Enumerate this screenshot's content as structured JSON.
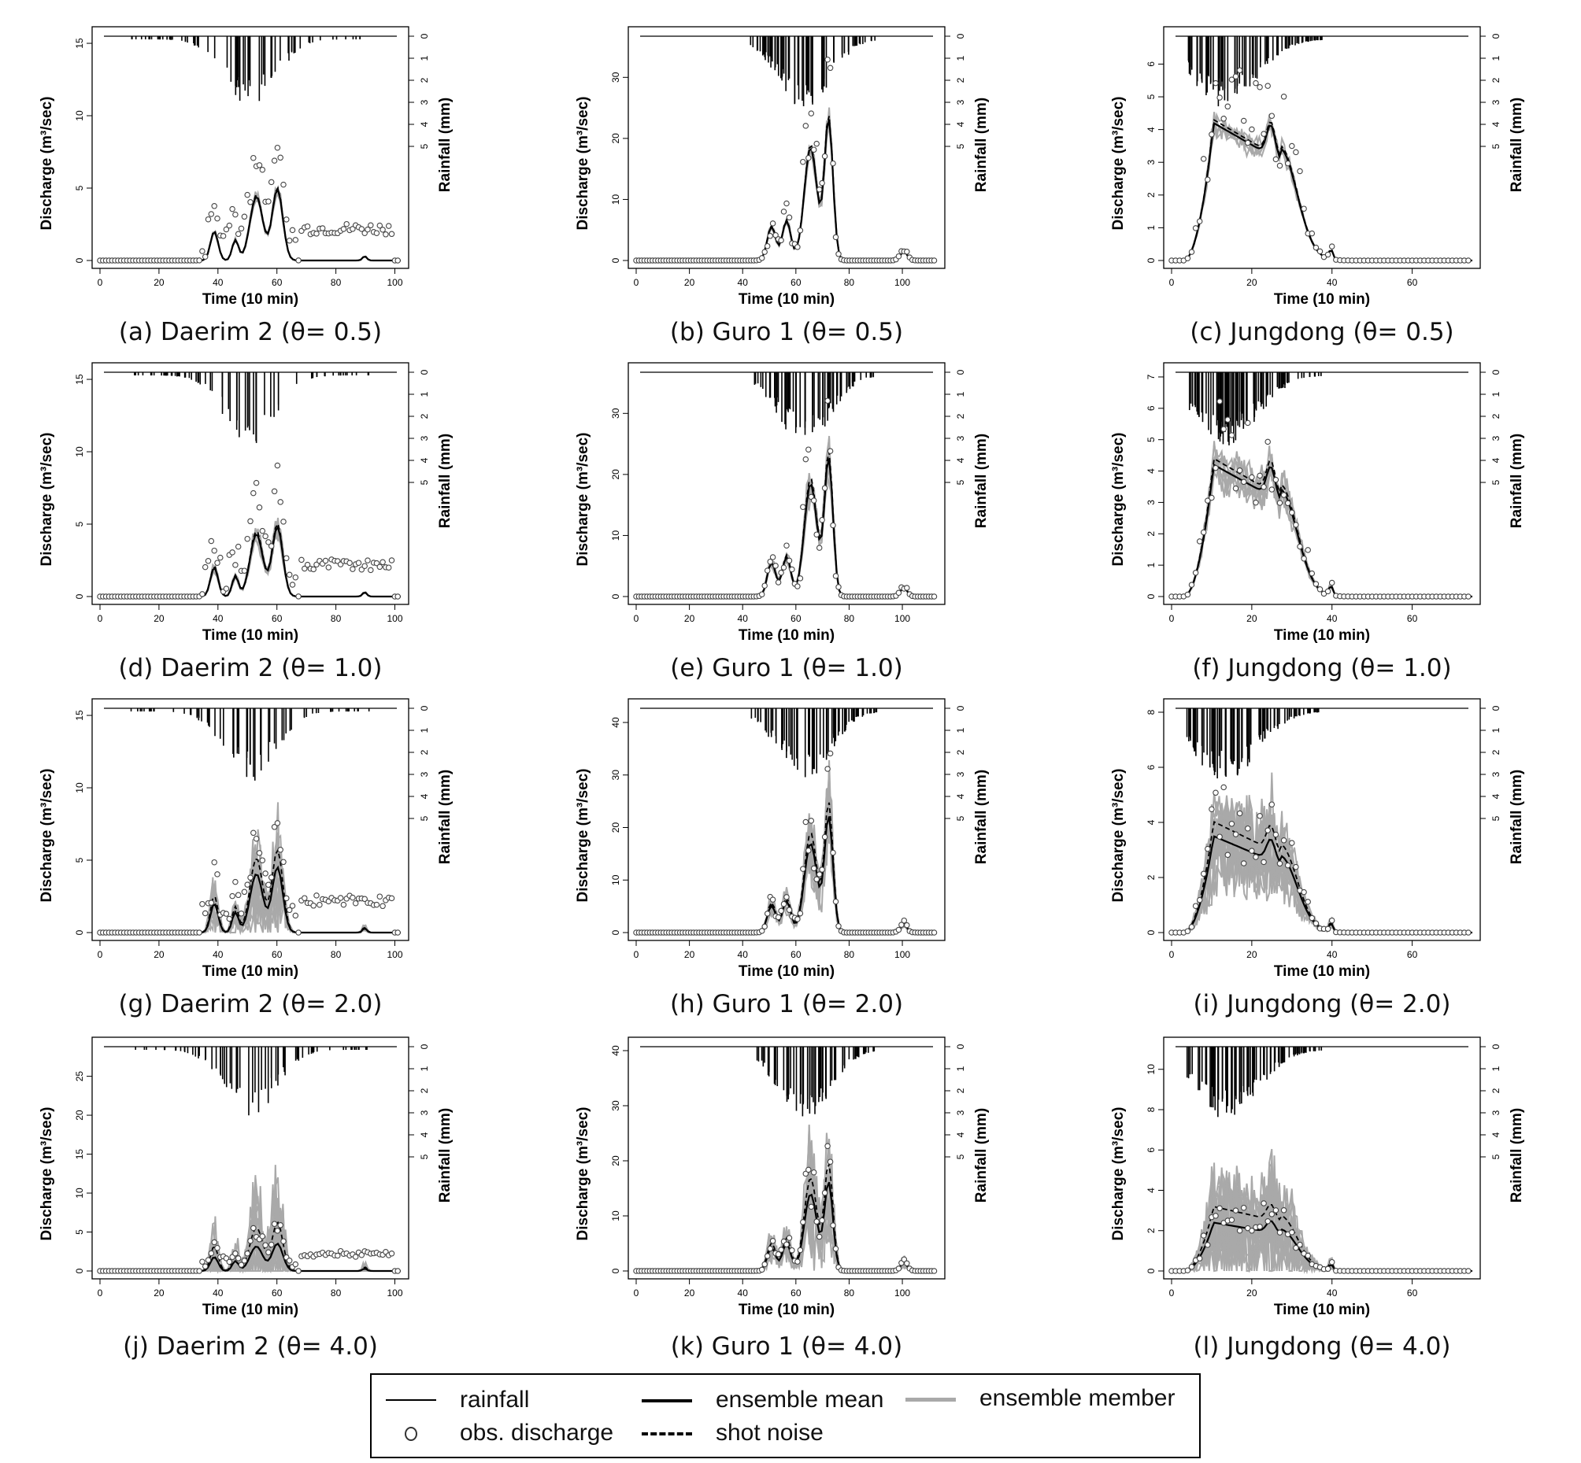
{
  "legend": {
    "rainfall": "rainfall",
    "obs": "obs. discharge",
    "mean": "ensemble mean",
    "shot": "shot noise",
    "member": "ensemble member"
  },
  "colors": {
    "ensemble_member": "#a9a9a9",
    "mean": "#000000",
    "shot": "#000000",
    "obs": "#444444"
  },
  "panel_common": {
    "xlabel": "Time (10 min)",
    "ylabel": "Discharge (m³/sec)",
    "y2label": "Rainfall (mm)",
    "y2ticks": [
      0,
      1,
      2,
      3,
      4,
      5
    ]
  },
  "chart_data": [
    {
      "id": "a",
      "type": "line",
      "caption": "(a) Daerim 2 (θ= 0.5)",
      "site": "Daerim 2",
      "theta": "0.5",
      "xlim": [
        0,
        102
      ],
      "xticks": [
        0,
        20,
        40,
        60,
        80,
        100
      ],
      "ylim": [
        0,
        15.6
      ],
      "yticks": [
        0,
        5,
        10,
        15
      ],
      "peak1": 2.0,
      "peak2": 4.9,
      "spread": 0.04,
      "members": 6
    },
    {
      "id": "b",
      "type": "line",
      "caption": "(b) Guro 1 (θ= 0.5)",
      "site": "Guro 1",
      "theta": "0.5",
      "xlim": [
        0,
        113
      ],
      "xticks": [
        0,
        20,
        40,
        60,
        80,
        100
      ],
      "ylim": [
        0,
        37
      ],
      "yticks": [
        0,
        10,
        20,
        30
      ],
      "peak1": 18.5,
      "peak2": 23,
      "spread": 0.04,
      "members": 6
    },
    {
      "id": "c",
      "type": "line",
      "caption": "(c) Jungdong (θ= 0.5)",
      "site": "Jungdong",
      "theta": "0.5",
      "xlim": [
        0,
        75
      ],
      "xticks": [
        0,
        20,
        40,
        60
      ],
      "ylim": [
        0,
        6.9
      ],
      "yticks": [
        0,
        1,
        2,
        3,
        4,
        5,
        6
      ],
      "peak1": 4.2,
      "peak2": 3.8,
      "spread": 0.04,
      "members": 6
    },
    {
      "id": "d",
      "type": "line",
      "caption": "(d) Daerim 2 (θ= 1.0)",
      "site": "Daerim 2",
      "theta": "1.0",
      "xlim": [
        0,
        102
      ],
      "xticks": [
        0,
        20,
        40,
        60,
        80,
        100
      ],
      "ylim": [
        0,
        15.6
      ],
      "yticks": [
        0,
        5,
        10,
        15
      ],
      "peak1": 2.0,
      "peak2": 4.8,
      "spread": 0.08,
      "members": 8
    },
    {
      "id": "e",
      "type": "line",
      "caption": "(e) Guro 1 (θ= 1.0)",
      "site": "Guro 1",
      "theta": "1.0",
      "xlim": [
        0,
        113
      ],
      "xticks": [
        0,
        20,
        40,
        60,
        80,
        100
      ],
      "ylim": [
        0,
        37
      ],
      "yticks": [
        0,
        10,
        20,
        30
      ],
      "peak1": 18.5,
      "peak2": 22.5,
      "spread": 0.08,
      "members": 8
    },
    {
      "id": "f",
      "type": "line",
      "caption": "(f) Jungdong (θ= 1.0)",
      "site": "Jungdong",
      "theta": "1.0",
      "xlim": [
        0,
        75
      ],
      "xticks": [
        0,
        20,
        40,
        60
      ],
      "ylim": [
        0,
        7.2
      ],
      "yticks": [
        0,
        1,
        2,
        3,
        4,
        5,
        6,
        7
      ],
      "peak1": 4.2,
      "peak2": 3.8,
      "spread": 0.08,
      "members": 8
    },
    {
      "id": "g",
      "type": "line",
      "caption": "(g) Daerim 2 (θ= 2.0)",
      "site": "Daerim 2",
      "theta": "2.0",
      "xlim": [
        0,
        102
      ],
      "xticks": [
        0,
        20,
        40,
        60,
        80,
        100
      ],
      "ylim": [
        0,
        15.6
      ],
      "yticks": [
        0,
        5,
        10,
        15
      ],
      "peak1": 2.0,
      "peak2": 4.5,
      "spread": 0.45,
      "members": 14
    },
    {
      "id": "h",
      "type": "line",
      "caption": "(h) Guro 1 (θ= 2.0)",
      "site": "Guro 1",
      "theta": "2.0",
      "xlim": [
        0,
        113
      ],
      "xticks": [
        0,
        20,
        40,
        60,
        80,
        100
      ],
      "ylim": [
        0,
        43
      ],
      "yticks": [
        0,
        10,
        20,
        30,
        40
      ],
      "peak1": 17,
      "peak2": 22,
      "spread": 0.2,
      "members": 12
    },
    {
      "id": "i",
      "type": "line",
      "caption": "(i) Jungdong (θ= 2.0)",
      "site": "Jungdong",
      "theta": "2.0",
      "xlim": [
        0,
        75
      ],
      "xticks": [
        0,
        20,
        40,
        60
      ],
      "ylim": [
        0,
        8.2
      ],
      "yticks": [
        0,
        2,
        4,
        6,
        8
      ],
      "peak1": 3.5,
      "peak2": 3.1,
      "spread": 0.25,
      "members": 14
    },
    {
      "id": "j",
      "type": "line",
      "caption": "(j) Daerim 2 (θ= 4.0)",
      "site": "Daerim 2",
      "theta": "4.0",
      "xlim": [
        0,
        102
      ],
      "xticks": [
        0,
        20,
        40,
        60,
        80,
        100
      ],
      "ylim": [
        0,
        29
      ],
      "yticks": [
        0,
        5,
        10,
        15,
        20,
        25
      ],
      "peak1": 1.8,
      "peak2": 3.5,
      "spread": 1.3,
      "members": 16
    },
    {
      "id": "k",
      "type": "line",
      "caption": "(k) Guro 1 (θ= 4.0)",
      "site": "Guro 1",
      "theta": "4.0",
      "xlim": [
        0,
        113
      ],
      "xticks": [
        0,
        20,
        40,
        60,
        80,
        100
      ],
      "ylim": [
        0,
        41
      ],
      "yticks": [
        0,
        10,
        20,
        30,
        40
      ],
      "peak1": 14,
      "peak2": 16,
      "spread": 0.35,
      "members": 16
    },
    {
      "id": "l",
      "type": "line",
      "caption": "(l) Jungdong (θ= 4.0)",
      "site": "Jungdong",
      "theta": "4.0",
      "xlim": [
        0,
        75
      ],
      "xticks": [
        0,
        20,
        40,
        60
      ],
      "ylim": [
        0,
        11.2
      ],
      "yticks": [
        0,
        2,
        4,
        6,
        8,
        10
      ],
      "peak1": 2.4,
      "peak2": 2.3,
      "spread": 0.55,
      "members": 16
    }
  ]
}
